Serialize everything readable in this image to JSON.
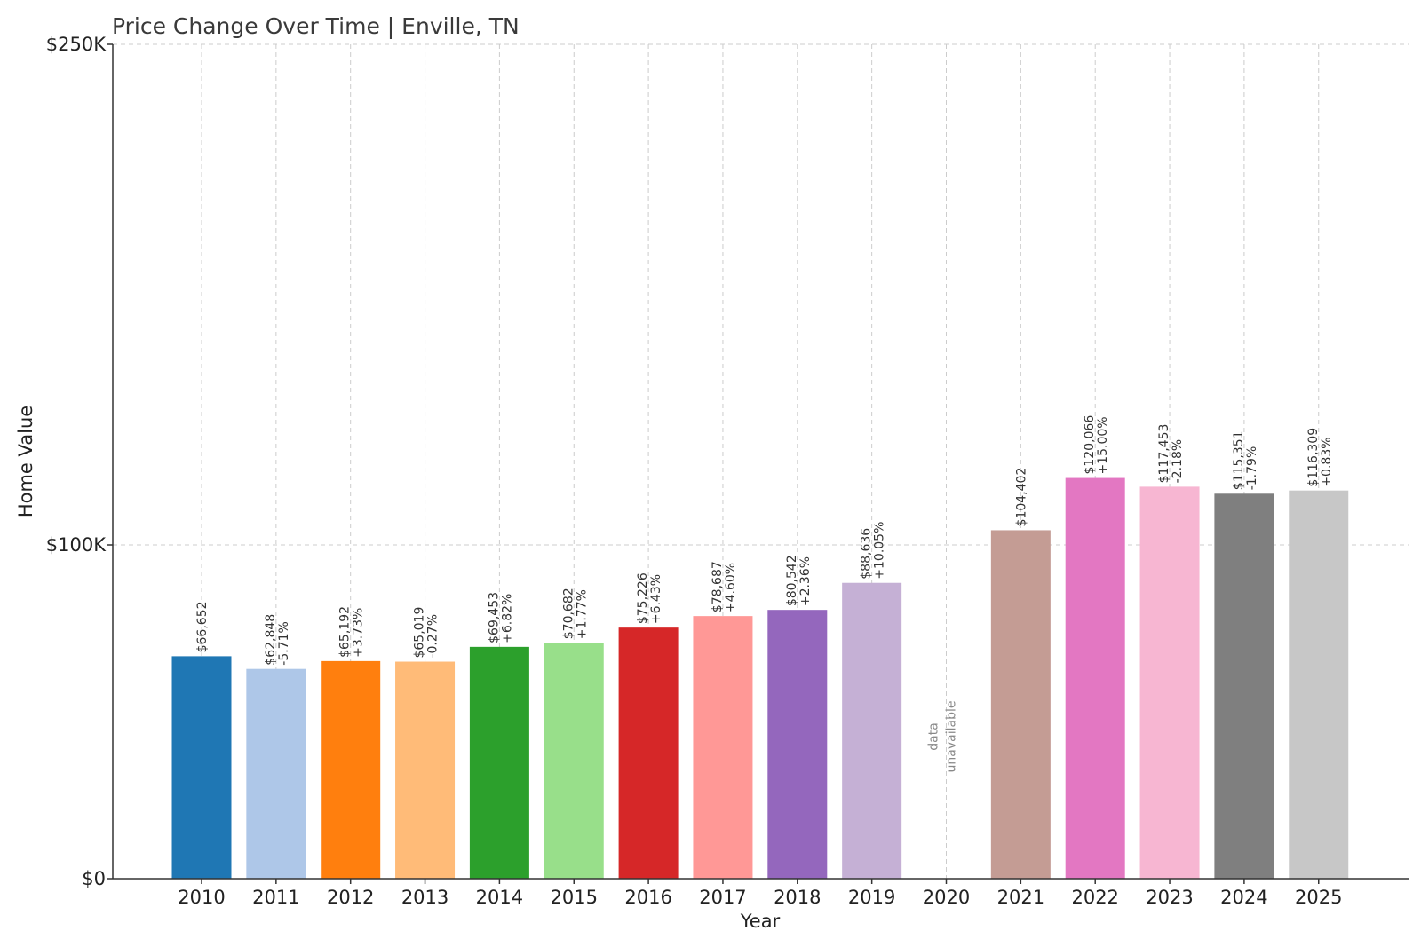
{
  "chart_data": {
    "type": "bar",
    "title": "Price Change Over Time | Enville, TN",
    "xlabel": "Year",
    "ylabel": "Home Value",
    "ylim": [
      0,
      250000
    ],
    "yticks": [
      {
        "value": 0,
        "label": "$0"
      },
      {
        "value": 100000,
        "label": "$100K"
      },
      {
        "value": 250000,
        "label": "$250K"
      }
    ],
    "grid": true,
    "categories": [
      "2010",
      "2011",
      "2012",
      "2013",
      "2014",
      "2015",
      "2016",
      "2017",
      "2018",
      "2019",
      "2020",
      "2021",
      "2022",
      "2023",
      "2024",
      "2025"
    ],
    "values": [
      66652,
      62848,
      65192,
      65019,
      69453,
      70682,
      75226,
      78687,
      80542,
      88636,
      null,
      104402,
      120066,
      117453,
      115351,
      116309
    ],
    "value_labels": [
      "$66,652",
      "$62,848",
      "$65,192",
      "$65,019",
      "$69,453",
      "$70,682",
      "$75,226",
      "$78,687",
      "$80,542",
      "$88,636",
      null,
      "$104,402",
      "$120,066",
      "$117,453",
      "$115,351",
      "$116,309"
    ],
    "change_labels": [
      "",
      "-5.71%",
      "+3.73%",
      "-0.27%",
      "+6.82%",
      "+1.77%",
      "+6.43%",
      "+4.60%",
      "+2.36%",
      "+10.05%",
      null,
      "",
      "+15.00%",
      "-2.18%",
      "-1.79%",
      "+0.83%"
    ],
    "unavailable_label": [
      "data",
      "unavailable"
    ],
    "colors": [
      "#1f77b4",
      "#aec7e8",
      "#ff7f0e",
      "#ffbb78",
      "#2ca02c",
      "#98df8a",
      "#d62728",
      "#ff9896",
      "#9467bd",
      "#c5b0d5",
      "#8c564b",
      "#c49c94",
      "#e377c2",
      "#f7b6d2",
      "#7f7f7f",
      "#c7c7c7"
    ]
  }
}
